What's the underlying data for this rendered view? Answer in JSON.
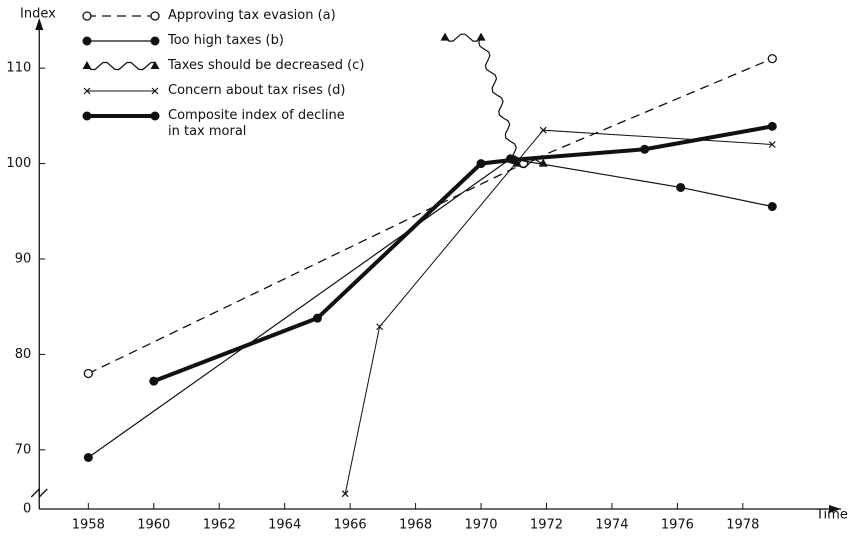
{
  "chart_data": {
    "type": "line",
    "y_label": "Index",
    "x_label": "Time",
    "xlim": [
      1956.5,
      1981
    ],
    "xticks": [
      1958,
      1960,
      1962,
      1964,
      1966,
      1968,
      1970,
      1972,
      1974,
      1976,
      1978
    ],
    "ylim": [
      63.8,
      114
    ],
    "yticks": [
      0,
      70,
      80,
      90,
      100,
      110
    ],
    "y_axis_break": true,
    "series": [
      {
        "name": "Approving tax evasion (a)",
        "color": "#111",
        "marker": "open-circle",
        "line": "dashed",
        "width": 1.3,
        "x": [
          1958,
          1971.3,
          1978.9
        ],
        "values": [
          78,
          100,
          111
        ]
      },
      {
        "name": "Too high taxes (b)",
        "color": "#111",
        "marker": "circle",
        "line": "solid",
        "width": 1.2,
        "x": [
          1958,
          1970.9,
          1976.1,
          1978.9
        ],
        "values": [
          69.2,
          100.5,
          97.5,
          95.5
        ]
      },
      {
        "name": "Taxes should be decreased (c)",
        "color": "#111",
        "marker": "triangle",
        "line": "wavy",
        "width": 1.2,
        "x": [
          1968.9,
          1970,
          1971.1,
          1971.9
        ],
        "values": [
          113.2,
          113.2,
          100,
          100
        ]
      },
      {
        "name": "Concern about tax rises (d)",
        "color": "#111",
        "marker": "x",
        "line": "solid",
        "width": 1,
        "x": [
          1965.85,
          1966.9,
          1971.9,
          1978.9
        ],
        "values": [
          65.4,
          82.9,
          103.5,
          102
        ]
      },
      {
        "name": "Composite index of decline\nin tax moral",
        "color": "#111",
        "marker": "circle",
        "line": "solid",
        "width": 4,
        "x": [
          1960,
          1965,
          1970,
          1971,
          1975,
          1978.9
        ],
        "values": [
          77.2,
          83.8,
          100,
          100.4,
          101.5,
          103.9
        ]
      }
    ]
  }
}
